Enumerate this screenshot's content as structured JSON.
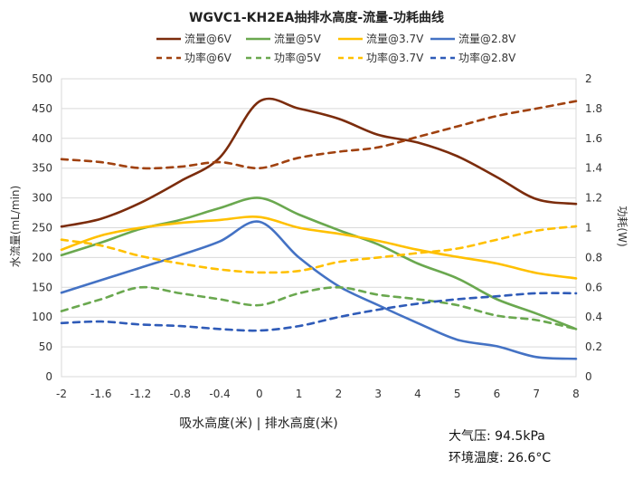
{
  "chart_data": {
    "type": "line",
    "title": "WGVC1-KH2EA抽排水高度-流量-功耗曲线",
    "xlabel": "吸水高度(米) | 排水高度(米)",
    "ylabel": "水流量(mL/min)",
    "y2label": "功耗(W)",
    "xlim": [
      -2,
      8
    ],
    "ylim": [
      0,
      500
    ],
    "y2lim": [
      0,
      2
    ],
    "x_ticks": [
      "-2",
      "-1.6",
      "-1.2",
      "-0.8",
      "-0.4",
      "0",
      "1",
      "2",
      "3",
      "4",
      "5",
      "6",
      "7",
      "8"
    ],
    "y_ticks": [
      "0",
      "50",
      "100",
      "150",
      "200",
      "250",
      "300",
      "350",
      "400",
      "450",
      "500"
    ],
    "y2_ticks": [
      "0",
      "0.2",
      "0.4",
      "0.6",
      "0.8",
      "1",
      "1.2",
      "1.4",
      "1.6",
      "1.8",
      "2"
    ],
    "series": [
      {
        "name": "流量@6V",
        "axis": "left",
        "style": "solid",
        "color": "#7b2c0c",
        "values": [
          252,
          265,
          292,
          328,
          368,
          462,
          450,
          433,
          406,
          393,
          370,
          335,
          298,
          290
        ]
      },
      {
        "name": "流量@5V",
        "axis": "left",
        "style": "solid",
        "color": "#6aa84f",
        "values": [
          204,
          225,
          248,
          263,
          283,
          300,
          272,
          246,
          222,
          190,
          165,
          130,
          106,
          80
        ]
      },
      {
        "name": "流量@3.7V",
        "axis": "left",
        "style": "solid",
        "color": "#ffc000",
        "values": [
          213,
          237,
          250,
          258,
          263,
          268,
          250,
          240,
          228,
          213,
          201,
          190,
          174,
          165
        ]
      },
      {
        "name": "流量@2.8V",
        "axis": "left",
        "style": "solid",
        "color": "#4472c4",
        "values": [
          141,
          162,
          183,
          204,
          227,
          260,
          200,
          152,
          120,
          90,
          62,
          51,
          33,
          30
        ]
      },
      {
        "name": "功率@6V",
        "axis": "right",
        "style": "dashed",
        "color": "#a0410f",
        "values": [
          1.46,
          1.44,
          1.4,
          1.41,
          1.44,
          1.4,
          1.47,
          1.51,
          1.54,
          1.61,
          1.68,
          1.75,
          1.8,
          1.85
        ]
      },
      {
        "name": "功率@5V",
        "axis": "right",
        "style": "dashed",
        "color": "#6aa84f",
        "values": [
          0.44,
          0.52,
          0.6,
          0.56,
          0.52,
          0.48,
          0.56,
          0.6,
          0.55,
          0.52,
          0.48,
          0.41,
          0.38,
          0.32
        ]
      },
      {
        "name": "功率@3.7V",
        "axis": "right",
        "style": "dashed",
        "color": "#ffc000",
        "values": [
          0.92,
          0.88,
          0.81,
          0.76,
          0.72,
          0.7,
          0.71,
          0.77,
          0.8,
          0.83,
          0.86,
          0.92,
          0.98,
          1.01
        ]
      },
      {
        "name": "功率@2.8V",
        "axis": "right",
        "style": "dashed",
        "color": "#2f5bb8",
        "values": [
          0.36,
          0.37,
          0.35,
          0.34,
          0.32,
          0.31,
          0.34,
          0.4,
          0.45,
          0.49,
          0.52,
          0.54,
          0.56,
          0.56
        ]
      }
    ]
  },
  "conditions": {
    "pressure": "大气压: 94.5kPa",
    "temperature": "环境温度: 26.6°C"
  }
}
